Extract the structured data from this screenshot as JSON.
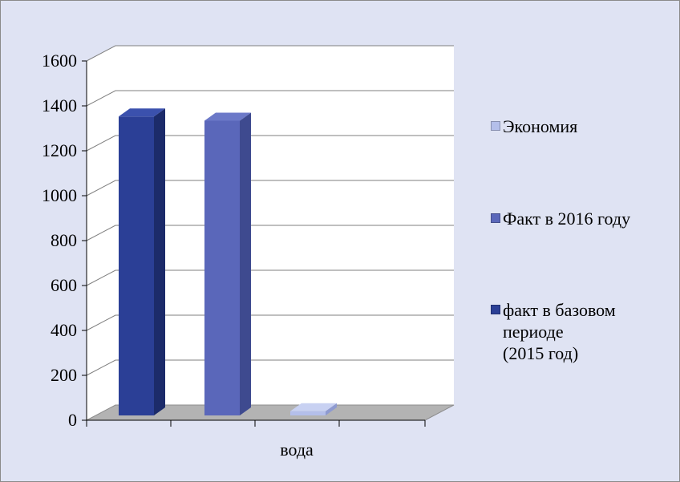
{
  "chart_data": {
    "type": "bar",
    "style": "3d-clustered",
    "categories": [
      "вода"
    ],
    "series": [
      {
        "name": "факт в базовом периоде\n(2015 год)",
        "values": [
          1420
        ],
        "color": "#2b3f96",
        "side": "#1c2b6a",
        "top": "#3b51ad"
      },
      {
        "name": "Факт в 2016 году",
        "values": [
          1400
        ],
        "color": "#5a67ba",
        "side": "#3e4a8f",
        "top": "#6c79c8"
      },
      {
        "name": "Экономия",
        "values": [
          20
        ],
        "color": "#b4bfea",
        "side": "#8e9ad0",
        "top": "#c8d1f2"
      }
    ],
    "y_ticks": [
      "0",
      "200",
      "400",
      "600",
      "800",
      "1000",
      "1200",
      "1400",
      "1600"
    ],
    "ylim": [
      0,
      1600
    ],
    "grid": true,
    "legend_position": "right",
    "legend_order": [
      2,
      1,
      0
    ],
    "colors": {
      "background": "#dfe3f3",
      "plot": "#ffffff",
      "floor": "#b3b3b3",
      "grid": "#7f7f7f"
    }
  }
}
